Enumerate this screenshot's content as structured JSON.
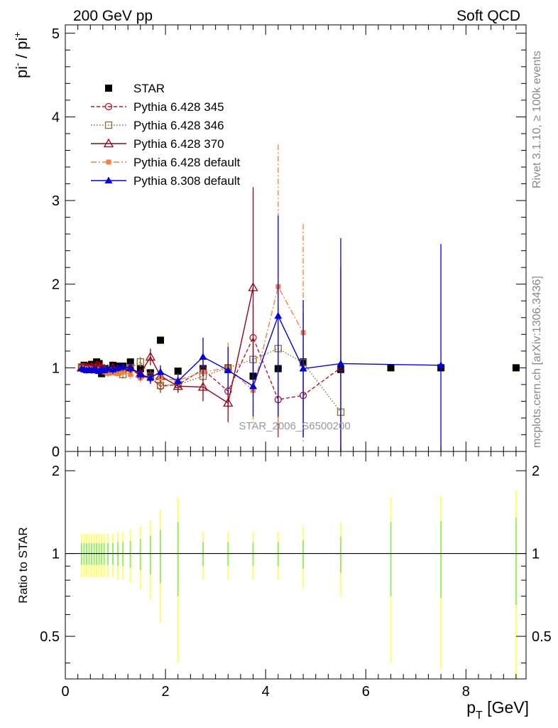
{
  "header": {
    "left_title": "200 GeV pp",
    "right_title": "Soft QCD"
  },
  "side_labels": {
    "rivet": "Rivet 3.1.10, ≥ 100k events",
    "mcplots": "mcplots.cern.ch [arXiv:1306.3436]"
  },
  "chart_data": [
    {
      "type": "scatter",
      "panel": "main",
      "ylabel_main": "pi",
      "ylabel_sup1": "-",
      "ylabel_mid": " / pi",
      "ylabel_sup2": "+",
      "xlim": [
        0,
        9.2
      ],
      "ylim": [
        0,
        5.1
      ],
      "y_ticks": [
        0,
        1,
        2,
        3,
        4,
        5
      ],
      "watermark": "STAR_2006_S6500200",
      "legend_position": "top-left",
      "series": [
        {
          "name": "STAR",
          "style": "data",
          "color": "#000000",
          "marker": "square-filled",
          "line": "none",
          "points": [
            [
              0.325,
              1.01
            ],
            [
              0.375,
              1.03
            ],
            [
              0.425,
              1.02
            ],
            [
              0.475,
              1.02
            ],
            [
              0.525,
              1.04
            ],
            [
              0.575,
              1.0
            ],
            [
              0.625,
              1.07
            ],
            [
              0.675,
              1.05
            ],
            [
              0.725,
              0.93
            ],
            [
              0.775,
              0.99
            ],
            [
              0.85,
              0.97
            ],
            [
              0.95,
              1.03
            ],
            [
              1.05,
              1.02
            ],
            [
              1.15,
              1.02
            ],
            [
              1.3,
              1.07
            ],
            [
              1.5,
              0.99
            ],
            [
              1.7,
              0.94
            ],
            [
              1.9,
              1.33
            ],
            [
              2.25,
              0.96
            ],
            [
              2.75,
              0.99
            ],
            [
              3.25,
              0.99
            ],
            [
              3.75,
              0.9
            ],
            [
              4.25,
              0.99
            ],
            [
              4.75,
              1.07
            ],
            [
              5.5,
              0.98
            ],
            [
              6.5,
              1.0
            ],
            [
              7.5,
              1.0
            ],
            [
              9.0,
              1.0
            ]
          ]
        },
        {
          "name": "Pythia 6.428 345",
          "style": "mc",
          "color": "#b2182b",
          "marker": "circle-open",
          "line": "dashed",
          "points": [
            [
              0.325,
              1.01,
              0.04
            ],
            [
              0.375,
              1.0,
              0.04
            ],
            [
              0.425,
              0.99,
              0.04
            ],
            [
              0.475,
              1.0,
              0.04
            ],
            [
              0.525,
              0.98,
              0.04
            ],
            [
              0.575,
              0.99,
              0.04
            ],
            [
              0.625,
              0.97,
              0.04
            ],
            [
              0.675,
              0.98,
              0.04
            ],
            [
              0.725,
              0.97,
              0.04
            ],
            [
              0.775,
              0.98,
              0.04
            ],
            [
              0.85,
              0.96,
              0.05
            ],
            [
              0.95,
              0.97,
              0.05
            ],
            [
              1.05,
              0.98,
              0.05
            ],
            [
              1.15,
              0.97,
              0.05
            ],
            [
              1.3,
              0.99,
              0.06
            ],
            [
              1.5,
              0.9,
              0.06
            ],
            [
              1.7,
              0.88,
              0.07
            ],
            [
              1.9,
              0.78,
              0.08
            ],
            [
              2.25,
              0.8,
              0.08
            ],
            [
              2.75,
              0.98,
              0.12
            ],
            [
              3.25,
              0.72,
              0.2
            ],
            [
              3.75,
              1.36,
              0.4
            ],
            [
              4.25,
              0.62,
              0.45
            ],
            [
              4.75,
              0.67,
              0.5
            ],
            [
              5.5,
              1.0,
              1.2
            ]
          ]
        },
        {
          "name": "Pythia 6.428 346",
          "style": "mc",
          "color": "#8c6d31",
          "marker": "square-open",
          "line": "dotted",
          "points": [
            [
              0.325,
              1.01,
              0.04
            ],
            [
              0.375,
              1.0,
              0.04
            ],
            [
              0.425,
              0.98,
              0.04
            ],
            [
              0.475,
              0.99,
              0.04
            ],
            [
              0.525,
              0.99,
              0.04
            ],
            [
              0.575,
              0.98,
              0.04
            ],
            [
              0.625,
              1.0,
              0.04
            ],
            [
              0.675,
              0.97,
              0.04
            ],
            [
              0.725,
              0.98,
              0.04
            ],
            [
              0.775,
              0.97,
              0.04
            ],
            [
              0.85,
              0.95,
              0.05
            ],
            [
              0.95,
              0.96,
              0.05
            ],
            [
              1.05,
              0.95,
              0.05
            ],
            [
              1.15,
              0.92,
              0.05
            ],
            [
              1.3,
              1.0,
              0.06
            ],
            [
              1.5,
              1.07,
              0.06
            ],
            [
              1.7,
              0.9,
              0.07
            ],
            [
              1.9,
              0.79,
              0.08
            ],
            [
              2.25,
              0.8,
              0.08
            ],
            [
              2.75,
              0.9,
              0.1
            ],
            [
              3.25,
              1.0,
              0.25
            ],
            [
              3.75,
              1.1,
              0.35
            ],
            [
              4.25,
              1.23,
              0.5
            ],
            [
              4.75,
              1.06,
              0.6
            ],
            [
              5.5,
              0.47,
              0.0
            ]
          ]
        },
        {
          "name": "Pythia 6.428 370",
          "style": "mc",
          "color": "#990014",
          "marker": "triangle-open",
          "line": "solid",
          "points": [
            [
              0.325,
              1.0,
              0.04
            ],
            [
              0.375,
              1.0,
              0.04
            ],
            [
              0.425,
              1.01,
              0.04
            ],
            [
              0.475,
              1.0,
              0.04
            ],
            [
              0.525,
              1.01,
              0.04
            ],
            [
              0.575,
              1.0,
              0.04
            ],
            [
              0.625,
              1.03,
              0.04
            ],
            [
              0.675,
              1.02,
              0.04
            ],
            [
              0.725,
              1.0,
              0.04
            ],
            [
              0.775,
              0.99,
              0.04
            ],
            [
              0.85,
              0.97,
              0.05
            ],
            [
              0.95,
              1.0,
              0.05
            ],
            [
              1.05,
              0.99,
              0.05
            ],
            [
              1.15,
              1.0,
              0.05
            ],
            [
              1.3,
              1.0,
              0.06
            ],
            [
              1.5,
              0.93,
              0.06
            ],
            [
              1.7,
              1.13,
              0.1
            ],
            [
              1.9,
              0.9,
              0.1
            ],
            [
              2.25,
              0.78,
              0.08
            ],
            [
              2.75,
              0.77,
              0.17
            ],
            [
              3.25,
              0.58,
              0.23
            ],
            [
              3.75,
              1.96,
              1.2
            ]
          ]
        },
        {
          "name": "Pythia 6.428 default",
          "style": "mc",
          "color": "#f5813f",
          "marker": "square-filled-small",
          "line": "dashdot",
          "points": [
            [
              0.325,
              1.0,
              0.04
            ],
            [
              0.375,
              0.99,
              0.04
            ],
            [
              0.425,
              0.98,
              0.04
            ],
            [
              0.475,
              0.99,
              0.04
            ],
            [
              0.525,
              0.98,
              0.04
            ],
            [
              0.575,
              0.97,
              0.04
            ],
            [
              0.625,
              0.96,
              0.04
            ],
            [
              0.675,
              0.97,
              0.04
            ],
            [
              0.725,
              0.96,
              0.04
            ],
            [
              0.775,
              0.95,
              0.04
            ],
            [
              0.85,
              0.94,
              0.05
            ],
            [
              0.95,
              0.95,
              0.05
            ],
            [
              1.05,
              0.93,
              0.05
            ],
            [
              1.15,
              0.95,
              0.05
            ],
            [
              1.3,
              0.92,
              0.06
            ],
            [
              1.5,
              0.88,
              0.06
            ],
            [
              1.7,
              0.87,
              0.07
            ],
            [
              1.9,
              0.88,
              0.08
            ],
            [
              2.25,
              0.85,
              0.08
            ],
            [
              2.75,
              0.95,
              0.12
            ],
            [
              3.25,
              1.0,
              0.3
            ],
            [
              3.75,
              0.73,
              0.4
            ],
            [
              4.25,
              1.97,
              1.7
            ],
            [
              4.75,
              1.42,
              1.3
            ]
          ]
        },
        {
          "name": "Pythia 8.308 default",
          "style": "mc",
          "color": "#0000dd",
          "marker": "triangle-filled",
          "line": "solid",
          "points": [
            [
              0.325,
              0.99,
              0.04
            ],
            [
              0.375,
              0.98,
              0.04
            ],
            [
              0.425,
              0.97,
              0.04
            ],
            [
              0.475,
              0.98,
              0.04
            ],
            [
              0.525,
              0.97,
              0.04
            ],
            [
              0.575,
              0.98,
              0.04
            ],
            [
              0.625,
              0.97,
              0.04
            ],
            [
              0.675,
              0.96,
              0.04
            ],
            [
              0.725,
              0.98,
              0.04
            ],
            [
              0.775,
              0.97,
              0.04
            ],
            [
              0.85,
              0.99,
              0.05
            ],
            [
              0.95,
              0.98,
              0.05
            ],
            [
              1.05,
              1.0,
              0.05
            ],
            [
              1.15,
              1.01,
              0.05
            ],
            [
              1.3,
              1.0,
              0.06
            ],
            [
              1.5,
              0.92,
              0.06
            ],
            [
              1.7,
              0.88,
              0.07
            ],
            [
              1.9,
              0.95,
              0.08
            ],
            [
              2.25,
              0.84,
              0.08
            ],
            [
              2.75,
              1.13,
              0.23
            ],
            [
              3.25,
              0.97,
              0.28
            ],
            [
              3.75,
              0.78,
              0.36
            ],
            [
              4.25,
              1.62,
              1.2
            ],
            [
              4.75,
              0.99,
              0.82
            ],
            [
              5.5,
              1.05,
              1.5
            ],
            [
              7.5,
              1.03,
              1.45
            ]
          ]
        }
      ]
    },
    {
      "type": "scatter",
      "panel": "ratio",
      "ylabel": "Ratio to STAR",
      "xlabel_main": "p",
      "xlabel_sub": "T",
      "xlabel_unit": " [GeV]",
      "xlim": [
        0,
        9.2
      ],
      "x_ticks": [
        0,
        2,
        4,
        6,
        8
      ],
      "y_log": true,
      "ylim": [
        0.35,
        2.35
      ],
      "y_ticks": [
        0.5,
        1,
        2
      ],
      "reference_line": 1,
      "uncertainty_band_colors": [
        "#ffff66",
        "#99ee66"
      ],
      "bands": [
        [
          0.325,
          0.18,
          0.09
        ],
        [
          0.375,
          0.18,
          0.09
        ],
        [
          0.425,
          0.18,
          0.09
        ],
        [
          0.475,
          0.18,
          0.09
        ],
        [
          0.525,
          0.18,
          0.09
        ],
        [
          0.575,
          0.18,
          0.09
        ],
        [
          0.625,
          0.18,
          0.09
        ],
        [
          0.675,
          0.18,
          0.09
        ],
        [
          0.725,
          0.18,
          0.09
        ],
        [
          0.775,
          0.18,
          0.09
        ],
        [
          0.85,
          0.18,
          0.09
        ],
        [
          0.95,
          0.18,
          0.09
        ],
        [
          1.05,
          0.2,
          0.1
        ],
        [
          1.15,
          0.2,
          0.1
        ],
        [
          1.3,
          0.22,
          0.11
        ],
        [
          1.5,
          0.26,
          0.13
        ],
        [
          1.7,
          0.32,
          0.16
        ],
        [
          1.9,
          0.44,
          0.22
        ],
        [
          2.25,
          0.6,
          0.3
        ],
        [
          2.75,
          0.2,
          0.1
        ],
        [
          3.25,
          0.2,
          0.1
        ],
        [
          3.75,
          0.2,
          0.1
        ],
        [
          4.25,
          0.2,
          0.1
        ],
        [
          4.75,
          0.25,
          0.12
        ],
        [
          5.5,
          0.3,
          0.15
        ],
        [
          6.5,
          0.6,
          0.3
        ],
        [
          7.5,
          0.62,
          0.31
        ],
        [
          9.0,
          0.7,
          0.35
        ]
      ]
    }
  ]
}
